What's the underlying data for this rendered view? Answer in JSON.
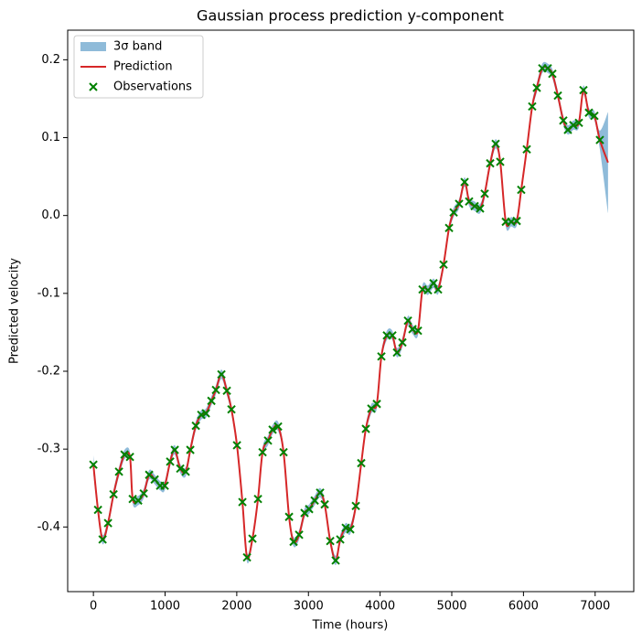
{
  "chart_data": {
    "type": "line",
    "title": "Gaussian process prediction y-component",
    "x_label": "Time (hours)",
    "y_label": "Predicted velocity",
    "xlim": [
      -359,
      7539
    ],
    "ylim": [
      -0.483,
      0.238
    ],
    "xticks": [
      0,
      1000,
      2000,
      3000,
      4000,
      5000,
      6000,
      7000
    ],
    "yticks": [
      -0.4,
      -0.3,
      -0.2,
      -0.1,
      {
        "value": 0,
        "label": "0.0"
      },
      0.1,
      0.2
    ],
    "legend": "upper left",
    "series": [
      {
        "name": "3σ band",
        "type": "band",
        "color": "#1f77b4",
        "x": [
          0,
          64,
          128,
          204,
          281,
          357,
          434,
          510,
          548,
          625,
          702,
          778,
          855,
          931,
          995,
          1071,
          1135,
          1212,
          1288,
          1352,
          1429,
          1505,
          1569,
          1646,
          1709,
          1786,
          1862,
          1926,
          2003,
          2079,
          2143,
          2219,
          2296,
          2360,
          2436,
          2500,
          2577,
          2653,
          2730,
          2793,
          2870,
          2946,
          3010,
          3087,
          3163,
          3227,
          3304,
          3380,
          3444,
          3520,
          3584,
          3661,
          3737,
          3801,
          3878,
          3954,
          4018,
          4094,
          4171,
          4235,
          4311,
          4388,
          4452,
          4528,
          4592,
          4668,
          4745,
          4809,
          4885,
          4962,
          5026,
          5102,
          5179,
          5242,
          5319,
          5395,
          5459,
          5536,
          5612,
          5676,
          5753,
          5829,
          5906,
          5969,
          6046,
          6122,
          6186,
          6263,
          6339,
          6403,
          6480,
          6556,
          6620,
          6696,
          6773,
          6837,
          6913,
          6990,
          7066,
          7180
        ],
        "lower": [
          -0.332,
          -0.384,
          -0.422,
          -0.401,
          -0.364,
          -0.335,
          -0.313,
          -0.316,
          -0.37,
          -0.372,
          -0.363,
          -0.339,
          -0.345,
          -0.353,
          -0.353,
          -0.322,
          -0.307,
          -0.331,
          -0.335,
          -0.307,
          -0.276,
          -0.262,
          -0.26,
          -0.244,
          -0.23,
          -0.21,
          -0.231,
          -0.255,
          -0.301,
          -0.374,
          -0.445,
          -0.421,
          -0.37,
          -0.31,
          -0.295,
          -0.281,
          -0.277,
          -0.31,
          -0.393,
          -0.425,
          -0.416,
          -0.388,
          -0.383,
          -0.372,
          -0.362,
          -0.377,
          -0.424,
          -0.449,
          -0.422,
          -0.407,
          -0.409,
          -0.379,
          -0.324,
          -0.28,
          -0.254,
          -0.248,
          -0.187,
          -0.16,
          -0.16,
          -0.182,
          -0.169,
          -0.141,
          -0.152,
          -0.154,
          -0.101,
          -0.102,
          -0.093,
          -0.101,
          -0.069,
          -0.022,
          -0.002,
          0.009,
          0.037,
          0.012,
          0.006,
          0.003,
          0.022,
          0.061,
          0.086,
          0.063,
          -0.014,
          -0.014,
          -0.013,
          0.027,
          0.079,
          0.134,
          0.158,
          0.183,
          0.183,
          0.176,
          0.148,
          0.116,
          0.104,
          0.11,
          0.113,
          0.155,
          0.126,
          0.122,
          0.085,
          0.003
        ],
        "upper": [
          -0.308,
          -0.372,
          -0.41,
          -0.389,
          -0.352,
          -0.323,
          -0.301,
          -0.304,
          -0.358,
          -0.36,
          -0.351,
          -0.327,
          -0.333,
          -0.341,
          -0.341,
          -0.31,
          -0.295,
          -0.319,
          -0.323,
          -0.295,
          -0.264,
          -0.25,
          -0.248,
          -0.232,
          -0.218,
          -0.198,
          -0.219,
          -0.243,
          -0.289,
          -0.362,
          -0.433,
          -0.409,
          -0.358,
          -0.298,
          -0.283,
          -0.269,
          -0.265,
          -0.298,
          -0.381,
          -0.413,
          -0.404,
          -0.376,
          -0.371,
          -0.36,
          -0.35,
          -0.365,
          -0.412,
          -0.437,
          -0.41,
          -0.395,
          -0.397,
          -0.367,
          -0.312,
          -0.268,
          -0.242,
          -0.236,
          -0.175,
          -0.148,
          -0.148,
          -0.17,
          -0.157,
          -0.129,
          -0.14,
          -0.142,
          -0.089,
          -0.09,
          -0.081,
          -0.089,
          -0.057,
          -0.01,
          0.01,
          0.021,
          0.049,
          0.024,
          0.018,
          0.015,
          0.034,
          0.073,
          0.098,
          0.075,
          -0.002,
          -0.002,
          -0.001,
          0.039,
          0.091,
          0.146,
          0.17,
          0.195,
          0.195,
          0.188,
          0.16,
          0.128,
          0.116,
          0.122,
          0.125,
          0.167,
          0.138,
          0.134,
          0.109,
          0.133
        ]
      },
      {
        "name": "Prediction",
        "type": "line",
        "color": "#d62728",
        "x": [
          0,
          64,
          128,
          204,
          281,
          357,
          434,
          510,
          548,
          625,
          702,
          778,
          855,
          931,
          995,
          1071,
          1135,
          1212,
          1288,
          1352,
          1429,
          1505,
          1569,
          1646,
          1709,
          1786,
          1862,
          1926,
          2003,
          2079,
          2143,
          2219,
          2296,
          2360,
          2436,
          2500,
          2577,
          2653,
          2730,
          2793,
          2870,
          2946,
          3010,
          3087,
          3163,
          3227,
          3304,
          3380,
          3444,
          3520,
          3584,
          3661,
          3737,
          3801,
          3878,
          3954,
          4018,
          4094,
          4171,
          4235,
          4311,
          4388,
          4452,
          4528,
          4592,
          4668,
          4745,
          4809,
          4885,
          4962,
          5026,
          5102,
          5179,
          5242,
          5319,
          5395,
          5459,
          5536,
          5612,
          5676,
          5753,
          5829,
          5906,
          5969,
          6046,
          6122,
          6186,
          6263,
          6339,
          6403,
          6480,
          6556,
          6620,
          6696,
          6773,
          6837,
          6913,
          6990,
          7066,
          7180
        ],
        "values": [
          -0.32,
          -0.378,
          -0.416,
          -0.395,
          -0.358,
          -0.329,
          -0.307,
          -0.31,
          -0.364,
          -0.366,
          -0.357,
          -0.333,
          -0.339,
          -0.347,
          -0.347,
          -0.316,
          -0.301,
          -0.325,
          -0.329,
          -0.301,
          -0.27,
          -0.256,
          -0.254,
          -0.238,
          -0.224,
          -0.204,
          -0.225,
          -0.249,
          -0.295,
          -0.368,
          -0.439,
          -0.415,
          -0.364,
          -0.304,
          -0.289,
          -0.275,
          -0.271,
          -0.304,
          -0.387,
          -0.419,
          -0.41,
          -0.382,
          -0.377,
          -0.366,
          -0.356,
          -0.371,
          -0.418,
          -0.443,
          -0.416,
          -0.401,
          -0.403,
          -0.373,
          -0.318,
          -0.274,
          -0.248,
          -0.242,
          -0.181,
          -0.154,
          -0.154,
          -0.176,
          -0.163,
          -0.135,
          -0.146,
          -0.148,
          -0.095,
          -0.096,
          -0.087,
          -0.095,
          -0.063,
          -0.016,
          0.004,
          0.015,
          0.043,
          0.018,
          0.012,
          0.009,
          0.028,
          0.067,
          0.092,
          0.069,
          -0.008,
          -0.008,
          -0.007,
          0.033,
          0.085,
          0.14,
          0.164,
          0.189,
          0.189,
          0.182,
          0.154,
          0.122,
          0.11,
          0.116,
          0.119,
          0.161,
          0.132,
          0.128,
          0.097,
          0.068
        ]
      },
      {
        "name": "Observations",
        "type": "scatter",
        "color": "#008000",
        "x": [
          0,
          64,
          128,
          204,
          281,
          357,
          434,
          510,
          548,
          625,
          702,
          778,
          855,
          931,
          995,
          1071,
          1135,
          1212,
          1288,
          1352,
          1429,
          1505,
          1569,
          1646,
          1709,
          1786,
          1862,
          1926,
          2003,
          2079,
          2143,
          2219,
          2296,
          2360,
          2436,
          2500,
          2577,
          2653,
          2730,
          2793,
          2870,
          2946,
          3010,
          3087,
          3163,
          3227,
          3304,
          3380,
          3444,
          3520,
          3584,
          3661,
          3737,
          3801,
          3878,
          3954,
          4018,
          4094,
          4171,
          4235,
          4311,
          4388,
          4452,
          4528,
          4592,
          4668,
          4745,
          4809,
          4885,
          4962,
          5026,
          5102,
          5179,
          5242,
          5319,
          5395,
          5459,
          5536,
          5612,
          5676,
          5753,
          5829,
          5906,
          5969,
          6046,
          6122,
          6186,
          6263,
          6339,
          6403,
          6480,
          6556,
          6620,
          6696,
          6773,
          6837,
          6913,
          6990,
          7066
        ],
        "values": [
          -0.32,
          -0.378,
          -0.416,
          -0.395,
          -0.358,
          -0.329,
          -0.307,
          -0.31,
          -0.364,
          -0.366,
          -0.357,
          -0.333,
          -0.339,
          -0.347,
          -0.347,
          -0.316,
          -0.301,
          -0.325,
          -0.329,
          -0.301,
          -0.27,
          -0.256,
          -0.254,
          -0.238,
          -0.224,
          -0.204,
          -0.225,
          -0.249,
          -0.295,
          -0.368,
          -0.439,
          -0.415,
          -0.364,
          -0.304,
          -0.289,
          -0.275,
          -0.271,
          -0.304,
          -0.387,
          -0.419,
          -0.41,
          -0.382,
          -0.377,
          -0.366,
          -0.356,
          -0.371,
          -0.418,
          -0.443,
          -0.416,
          -0.401,
          -0.403,
          -0.373,
          -0.318,
          -0.274,
          -0.248,
          -0.242,
          -0.181,
          -0.154,
          -0.154,
          -0.176,
          -0.163,
          -0.135,
          -0.146,
          -0.148,
          -0.095,
          -0.096,
          -0.087,
          -0.095,
          -0.063,
          -0.016,
          0.004,
          0.015,
          0.043,
          0.018,
          0.012,
          0.009,
          0.028,
          0.067,
          0.092,
          0.069,
          -0.008,
          -0.008,
          -0.007,
          0.033,
          0.085,
          0.14,
          0.164,
          0.189,
          0.189,
          0.182,
          0.154,
          0.122,
          0.11,
          0.116,
          0.119,
          0.161,
          0.132,
          0.128,
          0.097
        ]
      }
    ]
  }
}
